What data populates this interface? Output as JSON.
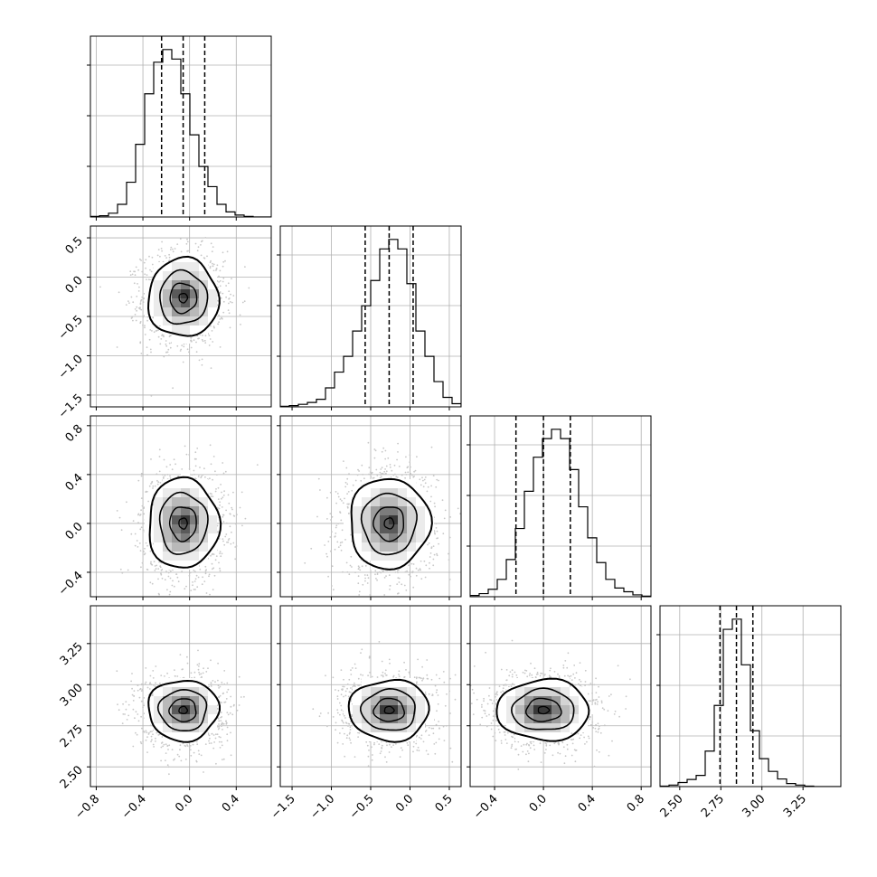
{
  "chart_data": {
    "type": "corner",
    "dimensions": 4,
    "grid": true,
    "ranges": [
      [
        -0.85,
        0.7
      ],
      [
        -1.65,
        0.65
      ],
      [
        -0.6,
        0.88
      ],
      [
        2.38,
        3.48
      ]
    ],
    "ticks": [
      [
        -0.8,
        -0.4,
        0.0,
        0.4
      ],
      [
        -1.5,
        -1.0,
        -0.5,
        0.0,
        0.5
      ],
      [
        -0.4,
        0.0,
        0.4,
        0.8
      ],
      [
        2.5,
        2.75,
        3.0,
        3.25
      ]
    ],
    "tick_labels": [
      [
        "−0.8",
        "−0.4",
        "0.0",
        "0.4"
      ],
      [
        "−1.5",
        "−1.0",
        "−0.5",
        "0.0",
        "0.5"
      ],
      [
        "−0.4",
        "0.0",
        "0.4",
        "0.8"
      ],
      [
        "2.50",
        "2.75",
        "3.00",
        "3.25"
      ]
    ],
    "quantiles": [
      [
        -0.24,
        -0.055,
        0.13
      ],
      [
        -0.57,
        -0.265,
        0.04
      ],
      [
        -0.225,
        0.0,
        0.22
      ],
      [
        2.745,
        2.845,
        2.945
      ]
    ],
    "histograms": [
      {
        "counts": [
          1,
          2,
          6,
          20,
          55,
          115,
          195,
          245,
          265,
          250,
          195,
          130,
          80,
          48,
          20,
          8,
          3,
          1,
          0,
          0
        ]
      },
      {
        "counts": [
          1,
          2,
          4,
          7,
          12,
          30,
          55,
          80,
          120,
          160,
          200,
          250,
          265,
          250,
          195,
          120,
          80,
          40,
          15,
          5
        ]
      },
      {
        "counts": [
          2,
          5,
          12,
          28,
          60,
          110,
          170,
          225,
          255,
          270,
          255,
          205,
          145,
          95,
          55,
          28,
          14,
          8,
          3,
          1
        ]
      },
      {
        "counts": [
          1,
          3,
          8,
          14,
          22,
          70,
          160,
          310,
          330,
          240,
          110,
          55,
          30,
          15,
          6,
          3,
          1,
          0,
          0,
          0
        ]
      }
    ],
    "pairs": [
      {
        "i": 1,
        "j": 0,
        "mean": [
          -0.055,
          -0.265
        ],
        "sd": [
          0.16,
          0.27
        ]
      },
      {
        "i": 2,
        "j": 0,
        "mean": [
          -0.055,
          0.0
        ],
        "sd": [
          0.16,
          0.2
        ]
      },
      {
        "i": 2,
        "j": 1,
        "mean": [
          -0.265,
          0.0
        ],
        "sd": [
          0.27,
          0.2
        ]
      },
      {
        "i": 3,
        "j": 0,
        "mean": [
          -0.055,
          2.845
        ],
        "sd": [
          0.16,
          0.1
        ]
      },
      {
        "i": 3,
        "j": 1,
        "mean": [
          -0.265,
          2.845
        ],
        "sd": [
          0.27,
          0.1
        ]
      },
      {
        "i": 3,
        "j": 2,
        "mean": [
          0.0,
          2.845
        ],
        "sd": [
          0.2,
          0.1
        ]
      }
    ]
  }
}
